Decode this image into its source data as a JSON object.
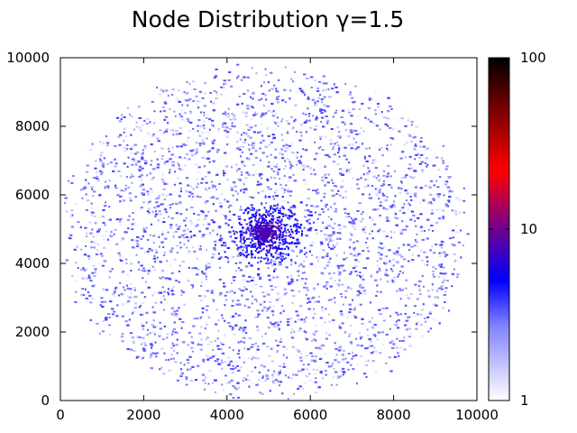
{
  "chart_data": {
    "type": "heatmap",
    "title": "Node Distribution  γ=1.5",
    "xlabel": "",
    "ylabel": "",
    "xlim": [
      0,
      10000
    ],
    "ylim": [
      0,
      10000
    ],
    "x_ticks": [
      "0",
      "2000",
      "4000",
      "6000",
      "8000",
      "10000"
    ],
    "y_ticks": [
      "0",
      "2000",
      "4000",
      "6000",
      "8000",
      "10000"
    ],
    "grid": false,
    "colorbar": {
      "scale": "log",
      "range": [
        1,
        100
      ],
      "ticks": [
        "1",
        "10",
        "100"
      ],
      "colors": [
        "#ffffff",
        "#8080ff",
        "#0000ff",
        "#800080",
        "#ff0000",
        "#800000",
        "#000000"
      ]
    },
    "distribution": {
      "description": "random node density, roughly circular region centered near (5000, 5000), densest cluster at center",
      "center": [
        4900,
        4900
      ],
      "radius": 5000
    }
  }
}
